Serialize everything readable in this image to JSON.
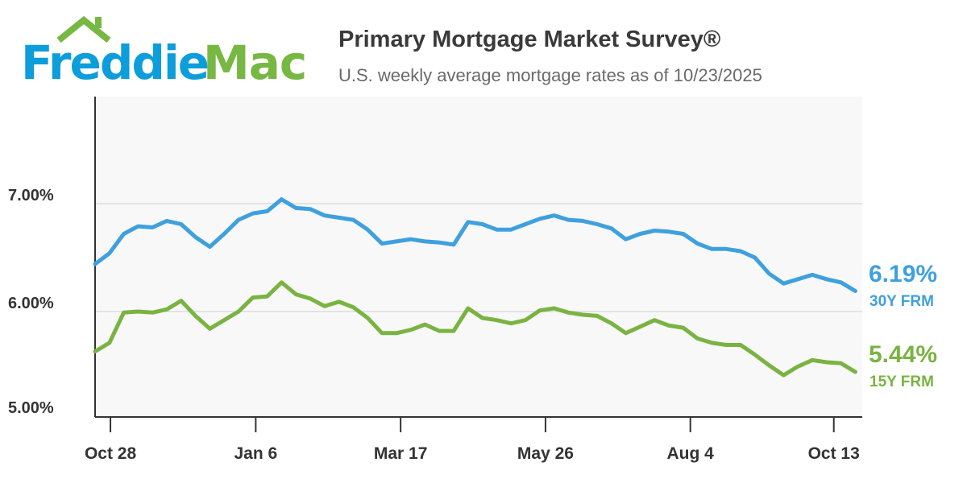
{
  "logo": {
    "part1": "Freddie",
    "part2": "Mac"
  },
  "colors": {
    "blue": "#3fa0de",
    "green": "#7ab342",
    "logo_blue": "#0d9ddb",
    "logo_green": "#77b843",
    "text": "#3a3a3a",
    "subtext": "#6a6a6a"
  },
  "chart_data": {
    "type": "line",
    "title": "Primary Mortgage Market Survey®",
    "subtitle": "U.S. weekly average mortgage rates as of 10/23/2025",
    "xlabel": "",
    "ylabel": "",
    "ylim": [
      5.0,
      8.0
    ],
    "grid": true,
    "y_ticks": [
      {
        "value": 7.0,
        "label": "7.00%"
      },
      {
        "value": 6.0,
        "label": "6.00%"
      },
      {
        "value": 5.0,
        "label": "5.00%"
      }
    ],
    "x_ticks": [
      {
        "week": 1.07,
        "label": "Oct 28"
      },
      {
        "week": 11.2,
        "label": "Jan 6"
      },
      {
        "week": 21.3,
        "label": "Mar 17"
      },
      {
        "week": 31.4,
        "label": "May 26"
      },
      {
        "week": 41.5,
        "label": "Aug 4"
      },
      {
        "week": 51.5,
        "label": "Oct 13"
      }
    ],
    "series": [
      {
        "name": "30Y FRM",
        "latest": "6.19%",
        "color": "#3fa0de",
        "values": [
          6.44,
          6.54,
          6.72,
          6.79,
          6.78,
          6.84,
          6.81,
          6.69,
          6.6,
          6.72,
          6.85,
          6.91,
          6.93,
          7.04,
          6.96,
          6.95,
          6.89,
          6.87,
          6.85,
          6.76,
          6.63,
          6.65,
          6.67,
          6.65,
          6.64,
          6.62,
          6.83,
          6.81,
          6.76,
          6.76,
          6.81,
          6.86,
          6.89,
          6.85,
          6.84,
          6.81,
          6.77,
          6.67,
          6.72,
          6.75,
          6.74,
          6.72,
          6.63,
          6.58,
          6.58,
          6.56,
          6.5,
          6.35,
          6.26,
          6.3,
          6.34,
          6.3,
          6.27,
          6.19
        ]
      },
      {
        "name": "15Y FRM",
        "latest": "5.44%",
        "color": "#7ab342",
        "values": [
          5.63,
          5.71,
          5.99,
          6.0,
          5.99,
          6.02,
          6.1,
          5.96,
          5.84,
          5.92,
          6.0,
          6.13,
          6.14,
          6.27,
          6.16,
          6.12,
          6.05,
          6.09,
          6.04,
          5.94,
          5.8,
          5.8,
          5.83,
          5.88,
          5.82,
          5.82,
          6.03,
          5.94,
          5.92,
          5.89,
          5.92,
          6.01,
          6.03,
          5.99,
          5.97,
          5.96,
          5.89,
          5.8,
          5.86,
          5.92,
          5.87,
          5.85,
          5.75,
          5.71,
          5.69,
          5.69,
          5.6,
          5.5,
          5.41,
          5.49,
          5.55,
          5.53,
          5.52,
          5.44
        ]
      }
    ]
  }
}
